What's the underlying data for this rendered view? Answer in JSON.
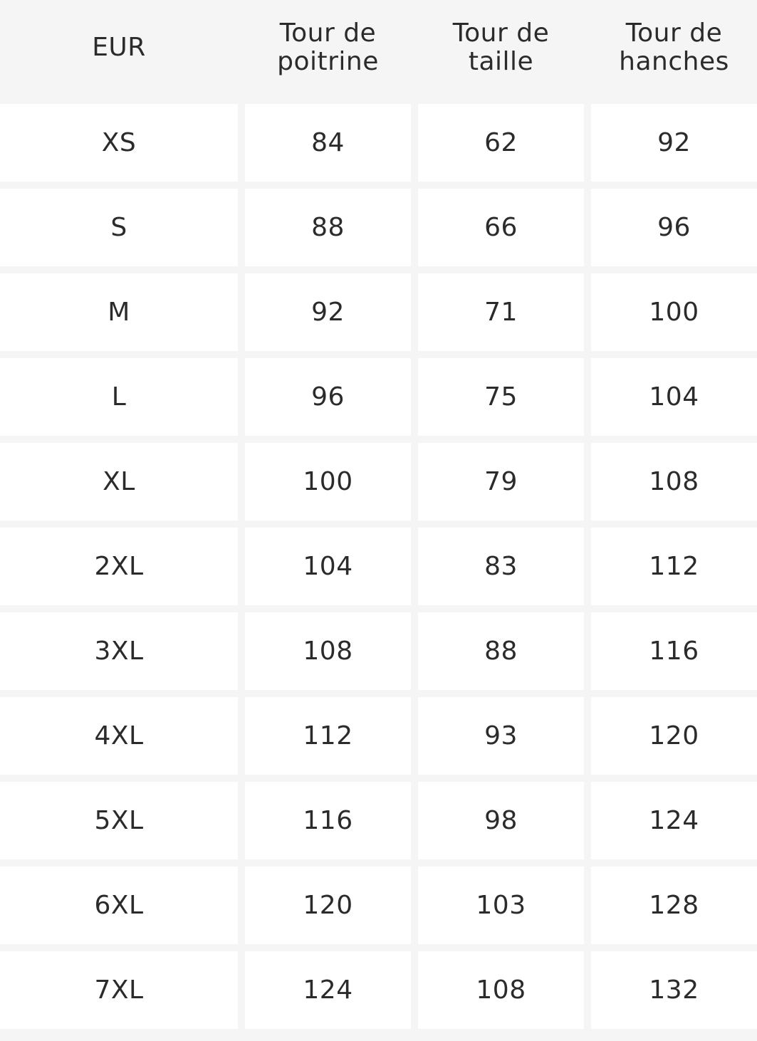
{
  "header": {
    "col1": "EUR",
    "col2": "Tour de\npoitrine",
    "col3": "Tour de\ntaille",
    "col4": "Tour de\nhanches"
  },
  "rows": [
    {
      "size": "XS",
      "chest": "84",
      "waist": "62",
      "hips": "92"
    },
    {
      "size": "S",
      "chest": "88",
      "waist": "66",
      "hips": "96"
    },
    {
      "size": "M",
      "chest": "92",
      "waist": "71",
      "hips": "100"
    },
    {
      "size": "L",
      "chest": "96",
      "waist": "75",
      "hips": "104"
    },
    {
      "size": "XL",
      "chest": "100",
      "waist": "79",
      "hips": "108"
    },
    {
      "size": "2XL",
      "chest": "104",
      "waist": "83",
      "hips": "112"
    },
    {
      "size": "3XL",
      "chest": "108",
      "waist": "88",
      "hips": "116"
    },
    {
      "size": "4XL",
      "chest": "112",
      "waist": "93",
      "hips": "120"
    },
    {
      "size": "5XL",
      "chest": "116",
      "waist": "98",
      "hips": "124"
    },
    {
      "size": "6XL",
      "chest": "120",
      "waist": "103",
      "hips": "128"
    },
    {
      "size": "7XL",
      "chest": "124",
      "waist": "108",
      "hips": "132"
    }
  ],
  "colors": {
    "background": "#f5f5f5",
    "cell": "#ffffff",
    "text": "#2b2b2b"
  }
}
